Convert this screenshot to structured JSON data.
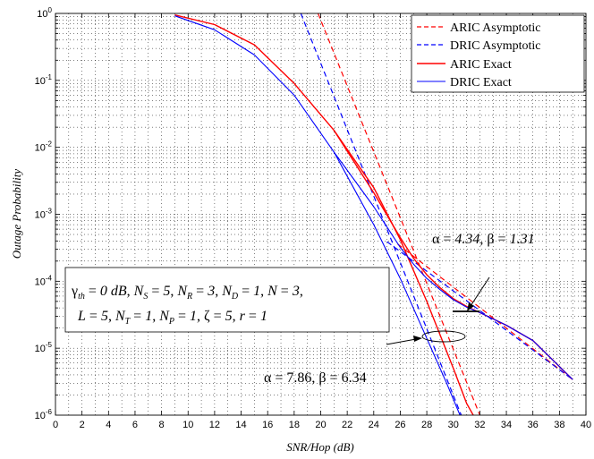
{
  "chart_data": {
    "type": "line",
    "xlabel": "SNR/Hop (dB)",
    "ylabel": "Outage Probability",
    "xlim": [
      0,
      40
    ],
    "ylim": [
      1e-06,
      1
    ],
    "yscale": "log",
    "grid": true,
    "legend_position": "top-right",
    "x_ticks": [
      "0",
      "2",
      "4",
      "6",
      "8",
      "10",
      "12",
      "14",
      "16",
      "18",
      "20",
      "22",
      "24",
      "26",
      "28",
      "30",
      "32",
      "34",
      "36",
      "38",
      "40"
    ],
    "y_ticks": [
      {
        "base": "10",
        "exp": "0"
      },
      {
        "base": "10",
        "exp": "-1"
      },
      {
        "base": "10",
        "exp": "-2"
      },
      {
        "base": "10",
        "exp": "-3"
      },
      {
        "base": "10",
        "exp": "-4"
      },
      {
        "base": "10",
        "exp": "-5"
      },
      {
        "base": "10",
        "exp": "-6"
      }
    ],
    "series": [
      {
        "name": "ARIC Asymptotic",
        "color": "#ff0000",
        "dash": true,
        "width": 1.2,
        "lines": [
          {
            "x": [
              19.8,
              32.0
            ],
            "y": [
              1.0,
              1e-06
            ]
          },
          {
            "x": [
              25.8,
              39.0
            ],
            "y": [
              0.00036,
              3.4e-06
            ]
          }
        ]
      },
      {
        "name": "DRIC Asymptotic",
        "color": "#0000ff",
        "dash": true,
        "width": 1.2,
        "lines": [
          {
            "x": [
              18.5,
              30.6
            ],
            "y": [
              1.0,
              1e-06
            ]
          },
          {
            "x": [
              25.0,
              39.0
            ],
            "y": [
              0.00039,
              3.4e-06
            ]
          }
        ]
      },
      {
        "name": "ARIC Exact",
        "color": "#ff0000",
        "dash": false,
        "width": 1.4,
        "lines": [
          {
            "x": [
              9,
              12,
              15,
              18,
              21,
              24,
              26,
              28,
              30,
              31,
              31.5
            ],
            "y": [
              0.95,
              0.68,
              0.34,
              0.09,
              0.018,
              0.0025,
              0.00042,
              5e-05,
              5e-06,
              1.5e-06,
              1e-06
            ]
          },
          {
            "x": [
              21,
              24,
              26,
              27,
              28,
              29,
              30,
              31,
              32,
              34,
              36,
              39
            ],
            "y": [
              0.018,
              0.0021,
              0.00045,
              0.00022,
              0.000125,
              8e-05,
              5.5e-05,
              4.2e-05,
              3.4e-05,
              2.2e-05,
              1.3e-05,
              3.4e-06
            ]
          }
        ]
      },
      {
        "name": "DRIC Exact",
        "color": "#0000ff",
        "dash": false,
        "width": 1.1,
        "lines": [
          {
            "x": [
              9,
              12,
              15,
              18,
              21,
              24,
              26,
              28,
              29.5,
              30.5
            ],
            "y": [
              0.92,
              0.57,
              0.24,
              0.06,
              0.0085,
              0.0007,
              0.00011,
              1.4e-05,
              3e-06,
              1e-06
            ]
          },
          {
            "x": [
              21,
              24,
              26,
              27,
              28,
              29,
              30,
              31,
              32,
              34,
              36,
              39
            ],
            "y": [
              0.0085,
              0.0013,
              0.00032,
              0.00018,
              0.00011,
              7.5e-05,
              5.3e-05,
              4.1e-05,
              3.4e-05,
              2.2e-05,
              1.3e-05,
              3.4e-06
            ]
          }
        ]
      }
    ],
    "annotations": {
      "parameter_box": {
        "line1": "γth = 0 dB, NS = 5, NR = 3, ND = 1, N = 3,",
        "line2": "L = 5, NT = 1, NP = 1, ζ = 5, r = 1"
      },
      "label_upper": {
        "alpha": "4.34",
        "beta": "1.31",
        "text": "α = 4.34, β = 1.31"
      },
      "label_lower": {
        "alpha": "7.86",
        "beta": "6.34",
        "text": "α = 7.86, β = 6.34"
      }
    }
  }
}
